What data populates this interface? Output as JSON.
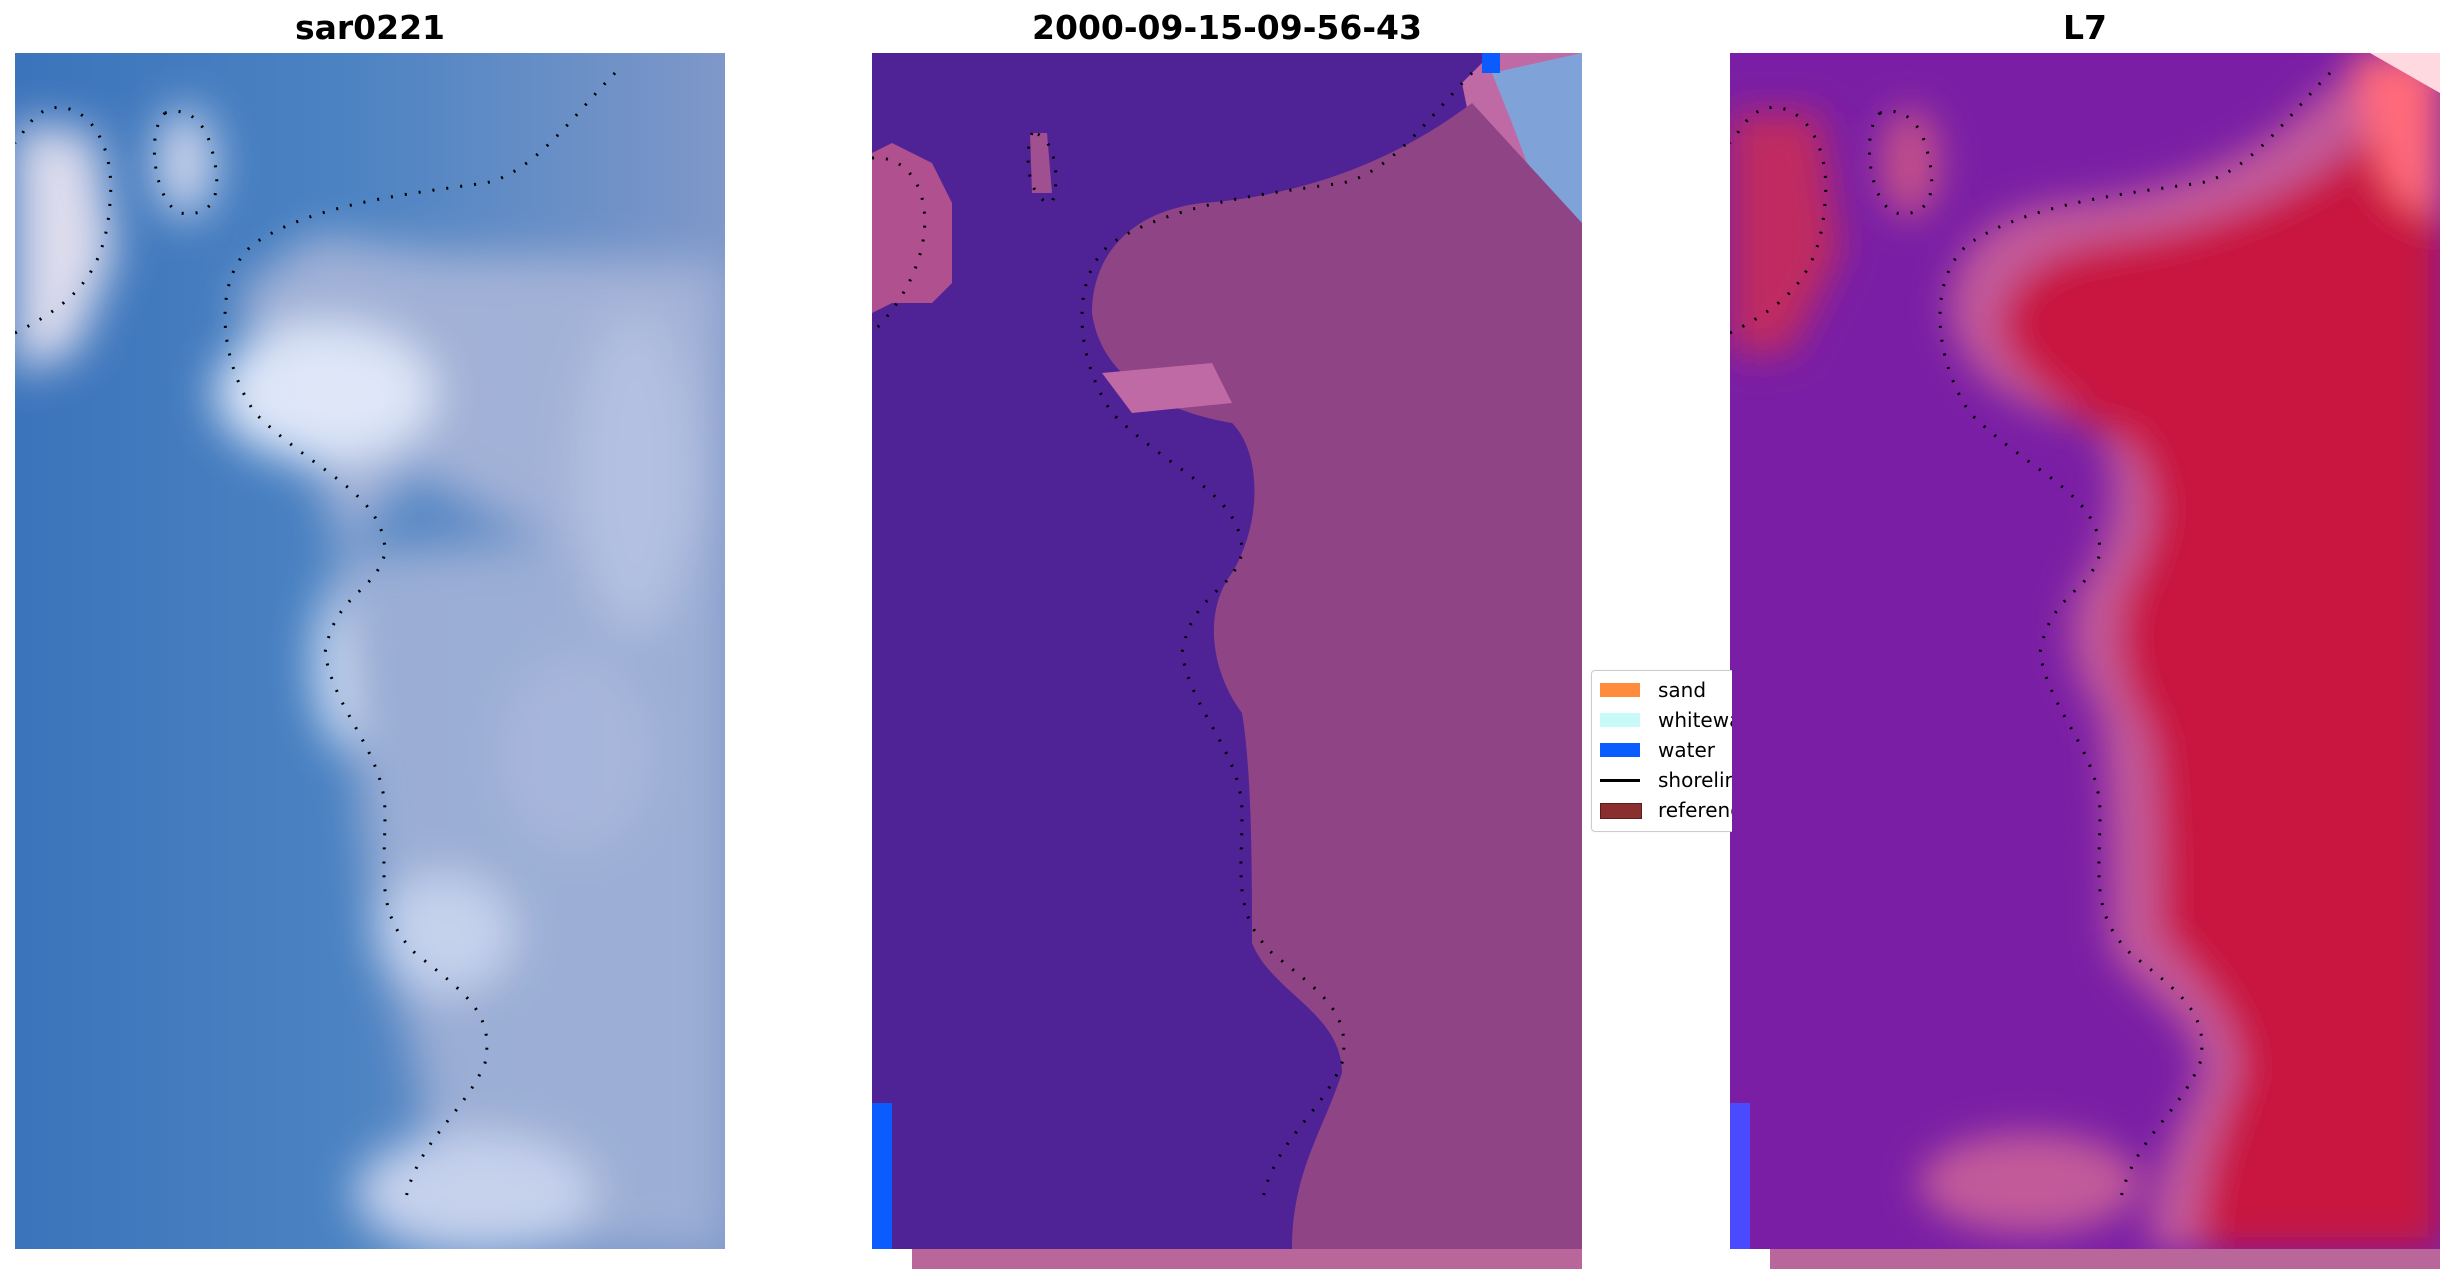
{
  "panels": [
    {
      "title": "sar0221",
      "colors": {
        "base": "#3f78bf",
        "bright": "#e8ecf8",
        "mid": "#8fa3cf"
      }
    },
    {
      "title": "2000-09-15-09-56-43",
      "colors": {
        "water_class": "#4f2396",
        "land_class": "#9a4f8f",
        "light_land": "#c06aa5",
        "edge": "#0a5cff",
        "corner": "#7fa3d8"
      }
    },
    {
      "title": "L7",
      "colors": {
        "left": "#7a1fa5",
        "right": "#c8143f",
        "transition": "#c25a9a",
        "corner": "#ff6b7a",
        "edge": "#4a4aff"
      }
    }
  ],
  "legend": {
    "items": [
      {
        "label": "sand",
        "color": "#ff8c3c",
        "type": "patch"
      },
      {
        "label": "whitewater",
        "color": "#c8fafa",
        "type": "patch"
      },
      {
        "label": "water",
        "color": "#0a5cff",
        "type": "patch"
      },
      {
        "label": "shoreline",
        "color": "#000000",
        "type": "line"
      },
      {
        "label": "reference shoreline",
        "color": "#8b2e2e",
        "type": "patch"
      }
    ]
  },
  "bottom_strip_color": "#b9679b"
}
